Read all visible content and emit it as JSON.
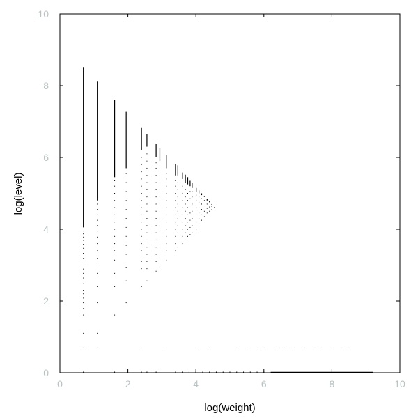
{
  "chart_data": {
    "type": "scatter",
    "title": "",
    "xlabel": "log(weight)",
    "ylabel": "log(level)",
    "xlim": [
      0,
      10
    ],
    "ylim": [
      0,
      10
    ],
    "xticks": [
      "0",
      "2",
      "4",
      "6",
      "8",
      "10"
    ],
    "yticks": [
      "0",
      "2",
      "4",
      "6",
      "8",
      "10"
    ],
    "grid": false,
    "legend": "none",
    "colors": {
      "points": "#000000",
      "frame": "#000000",
      "tick_labels": "#b8c2c2"
    },
    "columns": [
      {
        "x": 0.69,
        "ymin": 4.05,
        "ymax": 8.52,
        "scatter": [
          0.69,
          1.1,
          1.61,
          1.79,
          1.95,
          2.08,
          2.2,
          2.3,
          2.48,
          2.64,
          2.77,
          2.89,
          3.0,
          3.18,
          3.33,
          3.47,
          3.58,
          3.69,
          3.78,
          3.87,
          3.95
        ]
      },
      {
        "x": 1.1,
        "ymin": 4.8,
        "ymax": 8.13,
        "scatter": [
          0.69,
          1.1,
          1.95,
          2.4,
          2.77,
          3.0,
          3.18,
          3.4,
          3.6,
          3.78,
          3.95,
          4.1,
          4.25,
          4.4,
          4.55,
          4.7
        ]
      },
      {
        "x": 1.61,
        "ymin": 5.45,
        "ymax": 7.6,
        "scatter": [
          1.61,
          2.4,
          2.77,
          3.14,
          3.4,
          3.6,
          3.8,
          4.0,
          4.2,
          4.4,
          4.6,
          4.8,
          5.0,
          5.2,
          5.35
        ]
      },
      {
        "x": 1.95,
        "ymin": 5.7,
        "ymax": 7.27,
        "scatter": [
          1.95,
          2.56,
          2.94,
          3.3,
          3.55,
          3.8,
          4.05,
          4.3,
          4.55,
          4.8,
          5.05,
          5.3,
          5.55
        ]
      },
      {
        "x": 2.4,
        "ymin": 6.2,
        "ymax": 6.82,
        "scatter": [
          2.4,
          2.9,
          3.1,
          3.4,
          3.6,
          3.8,
          4.0,
          4.2,
          4.4,
          4.6,
          4.8,
          5.0,
          5.2,
          5.4,
          5.6,
          5.8,
          6.0
        ]
      },
      {
        "x": 2.56,
        "ymin": 6.3,
        "ymax": 6.65,
        "scatter": [
          2.56,
          2.9,
          3.1,
          3.3,
          3.5,
          3.7,
          3.9,
          4.1,
          4.3,
          4.5,
          4.7,
          4.9,
          5.1,
          5.3,
          5.5,
          5.7,
          5.9,
          6.1
        ]
      },
      {
        "x": 2.83,
        "ymin": 6.0,
        "ymax": 6.38,
        "scatter": [
          2.83,
          3.1,
          3.3,
          3.5,
          3.7,
          3.9,
          4.1,
          4.3,
          4.5,
          4.7,
          4.9,
          5.1,
          5.3,
          5.5,
          5.7,
          5.85
        ]
      },
      {
        "x": 2.94,
        "ymin": 5.9,
        "ymax": 6.27,
        "scatter": [
          2.94,
          3.2,
          3.45,
          3.7,
          3.9,
          4.1,
          4.3,
          4.5,
          4.7,
          4.9,
          5.1,
          5.3,
          5.5,
          5.7
        ]
      },
      {
        "x": 3.14,
        "ymin": 5.7,
        "ymax": 6.07,
        "scatter": [
          3.14,
          3.4,
          3.6,
          3.8,
          4.0,
          4.2,
          4.4,
          4.6,
          4.8,
          5.0,
          5.2,
          5.4,
          5.55
        ]
      },
      {
        "x": 3.4,
        "ymin": 5.5,
        "ymax": 5.82,
        "scatter": [
          3.4,
          3.6,
          3.8,
          4.0,
          4.2,
          4.4,
          4.6,
          4.8,
          5.0,
          5.2,
          5.35
        ]
      },
      {
        "x": 3.47,
        "ymin": 5.5,
        "ymax": 5.78,
        "scatter": [
          3.5,
          3.7,
          3.9,
          4.1,
          4.3,
          4.5,
          4.7,
          4.9,
          5.1,
          5.3
        ]
      },
      {
        "x": 3.61,
        "ymin": 5.4,
        "ymax": 5.58,
        "scatter": [
          3.6,
          3.8,
          4.0,
          4.2,
          4.4,
          4.6,
          4.8,
          5.0,
          5.2
        ]
      },
      {
        "x": 3.69,
        "ymin": 5.3,
        "ymax": 5.52,
        "scatter": [
          3.7,
          3.9,
          4.1,
          4.3,
          4.5,
          4.7,
          4.9,
          5.1
        ]
      },
      {
        "x": 3.76,
        "ymin": 5.25,
        "ymax": 5.45,
        "scatter": [
          3.8,
          4.0,
          4.2,
          4.4,
          4.6,
          4.8,
          5.0
        ]
      },
      {
        "x": 3.83,
        "ymin": 5.2,
        "ymax": 5.35,
        "scatter": [
          3.85,
          4.05,
          4.25,
          4.45,
          4.65,
          4.85,
          5.05
        ]
      },
      {
        "x": 3.89,
        "ymin": 5.15,
        "ymax": 5.3,
        "scatter": [
          3.9,
          4.1,
          4.3,
          4.5,
          4.7,
          4.9,
          5.05
        ]
      },
      {
        "x": 4.01,
        "ymin": 5.05,
        "ymax": 5.15,
        "scatter": [
          4.0,
          4.2,
          4.4,
          4.6,
          4.8,
          4.95
        ]
      },
      {
        "x": 4.09,
        "ymin": 5.0,
        "ymax": 5.08,
        "scatter": [
          4.15,
          4.3,
          4.45,
          4.6,
          4.75,
          4.9
        ]
      },
      {
        "x": 4.17,
        "ymin": 4.95,
        "ymax": 5.0,
        "scatter": [
          4.25,
          4.4,
          4.55,
          4.7,
          4.85
        ]
      },
      {
        "x": 4.25,
        "ymin": 4.9,
        "ymax": 4.92,
        "scatter": [
          4.35,
          4.5,
          4.65,
          4.8
        ]
      },
      {
        "x": 4.33,
        "ymin": 4.8,
        "ymax": 4.85,
        "scatter": [
          4.45,
          4.58,
          4.7
        ]
      },
      {
        "x": 4.4,
        "ymin": 4.75,
        "ymax": 4.78,
        "scatter": [
          4.5,
          4.62
        ]
      },
      {
        "x": 4.47,
        "ymin": 4.68,
        "ymax": 4.7,
        "scatter": [
          4.55,
          4.63
        ]
      },
      {
        "x": 4.55,
        "ymin": 4.6,
        "ymax": 4.62,
        "scatter": []
      }
    ],
    "row_y069_x": [
      0.69,
      1.1,
      2.4,
      3.14,
      4.09,
      4.4,
      5.2,
      5.5,
      5.8,
      6.0,
      6.3,
      6.6,
      6.9,
      7.2,
      7.5,
      7.7,
      7.95,
      8.3,
      8.5
    ],
    "baseline": {
      "y": 0,
      "x_start": 6.2,
      "x_end": 9.2,
      "scatter_x": [
        0.69,
        1.61,
        2.4,
        2.56,
        2.83,
        3.4,
        3.6,
        3.8,
        4.0,
        4.2,
        4.4,
        4.6,
        4.8,
        5.0,
        5.2,
        5.4,
        5.6,
        5.8,
        6.0
      ]
    }
  }
}
